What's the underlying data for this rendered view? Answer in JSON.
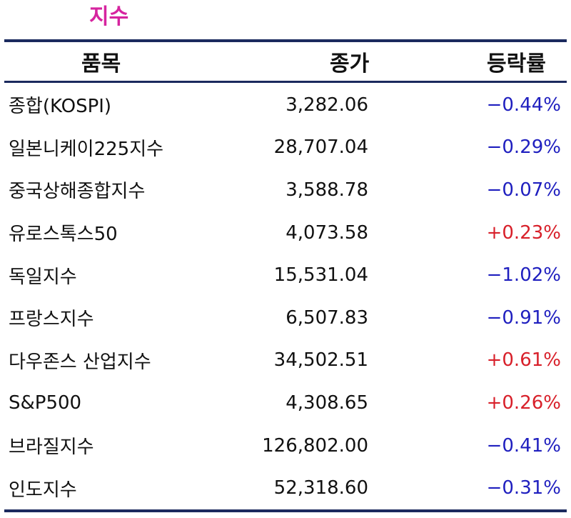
{
  "title": "지수",
  "colors": {
    "title": "#d6249f",
    "rule": "#1b2a5e",
    "down": "#1f1fbf",
    "up": "#d8202a",
    "text": "#111111"
  },
  "table": {
    "headers": {
      "name": "품목",
      "price": "종가",
      "change": "등락률"
    },
    "rows": [
      {
        "name": "종합(KOSPI)",
        "price": "3,282.06",
        "change": "−0.44%",
        "direction": "down"
      },
      {
        "name": "일본니케이225지수",
        "price": "28,707.04",
        "change": "−0.29%",
        "direction": "down"
      },
      {
        "name": "중국상해종합지수",
        "price": "3,588.78",
        "change": "−0.07%",
        "direction": "down"
      },
      {
        "name": "유로스톡스50",
        "price": "4,073.58",
        "change": "+0.23%",
        "direction": "up"
      },
      {
        "name": "독일지수",
        "price": "15,531.04",
        "change": "−1.02%",
        "direction": "down"
      },
      {
        "name": "프랑스지수",
        "price": "6,507.83",
        "change": "−0.91%",
        "direction": "down"
      },
      {
        "name": "다우존스 산업지수",
        "price": "34,502.51",
        "change": "+0.61%",
        "direction": "up"
      },
      {
        "name": "S&P500",
        "price": "4,308.65",
        "change": "+0.26%",
        "direction": "up"
      },
      {
        "name": "브라질지수",
        "price": "126,802.00",
        "change": "−0.41%",
        "direction": "down"
      },
      {
        "name": "인도지수",
        "price": "52,318.60",
        "change": "−0.31%",
        "direction": "down"
      }
    ]
  }
}
